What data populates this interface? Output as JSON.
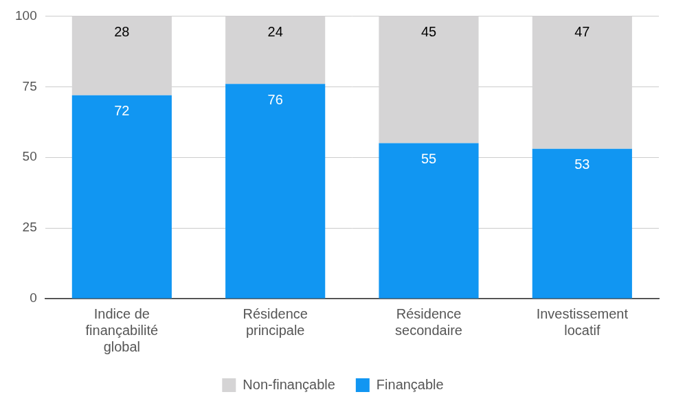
{
  "chart_data": {
    "type": "bar",
    "categories": [
      "Indice de finançabilité global",
      "Résidence principale",
      "Résidence secondaire",
      "Investissement locatif"
    ],
    "series": [
      {
        "name": "Finançable",
        "color": "#1196f2",
        "values": [
          72,
          76,
          55,
          53
        ]
      },
      {
        "name": "Non-finançable",
        "color": "#d5d4d5",
        "values": [
          28,
          24,
          45,
          47
        ]
      }
    ],
    "stacked": true,
    "ylim": [
      0,
      100
    ],
    "yticks": [
      0,
      25,
      50,
      75,
      100
    ],
    "grid": true,
    "legend": "bottom",
    "data_labels": true
  }
}
